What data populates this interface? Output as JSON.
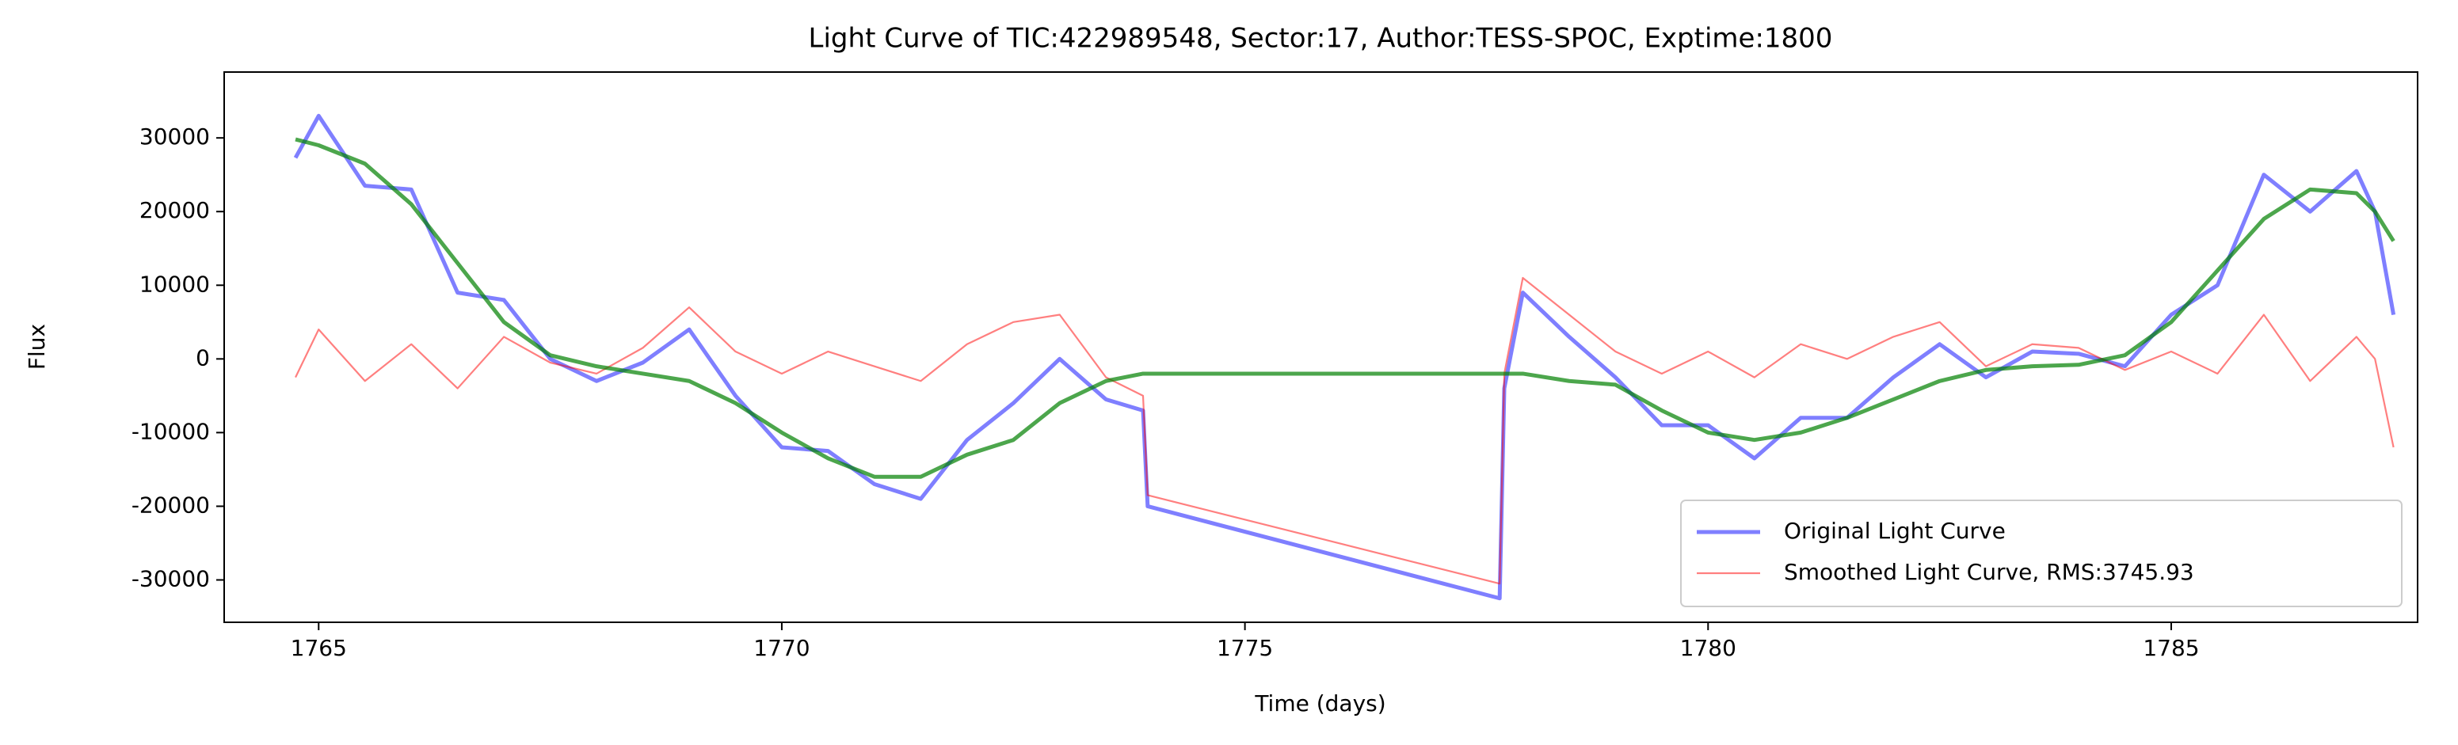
{
  "chart_data": {
    "type": "line",
    "title": "Light Curve of TIC:422989548, Sector:17, Author:TESS-SPOC, Exptime:1800",
    "x_label": "Time (days)",
    "y_label": "Flux",
    "x": [
      1764.75,
      1765.0,
      1765.5,
      1766.0,
      1766.5,
      1767.0,
      1767.5,
      1768.0,
      1768.5,
      1769.0,
      1769.5,
      1770.0,
      1770.5,
      1771.0,
      1771.5,
      1772.0,
      1772.5,
      1773.0,
      1773.5,
      1773.9,
      1773.95,
      1777.75,
      1777.8,
      1778.0,
      1778.5,
      1779.0,
      1779.5,
      1780.0,
      1780.5,
      1781.0,
      1781.5,
      1782.0,
      1782.5,
      1783.0,
      1783.5,
      1784.0,
      1784.5,
      1785.0,
      1785.5,
      1786.0,
      1786.5,
      1787.0,
      1787.2,
      1787.4
    ],
    "series": [
      {
        "name": "Original Light Curve",
        "color": "#0000ff",
        "values": [
          27300,
          33000,
          23500,
          23000,
          9000,
          8000,
          0,
          -3000,
          -500,
          4000,
          -5000,
          -12000,
          -12500,
          -17000,
          -19000,
          -11000,
          -6000,
          0,
          -5500,
          -7000,
          -20000,
          -32500,
          -4000,
          9000,
          3000,
          -2500,
          -9000,
          -9000,
          -13500,
          -8000,
          -8000,
          -2500,
          2000,
          -2500,
          1000,
          700,
          -1000,
          6000,
          10000,
          25000,
          20000,
          25500,
          20000,
          6000
        ]
      },
      {
        "name": "Smoothed Light Curve, RMS:3745.93",
        "color": "#ff0000",
        "values": [
          -2500,
          4000,
          -3000,
          2000,
          -4000,
          3000,
          -500,
          -2000,
          1500,
          7000,
          1000,
          -2000,
          1000,
          -1000,
          -3000,
          2000,
          5000,
          6000,
          -2500,
          -5000,
          -18500,
          -30500,
          -2000,
          11000,
          6000,
          1000,
          -2000,
          1000,
          -2500,
          2000,
          0,
          3000,
          5000,
          -1000,
          2000,
          1500,
          -1500,
          1000,
          -2000,
          6000,
          -3000,
          3000,
          0,
          -12000
        ]
      },
      {
        "color": "#008000",
        "values": [
          29800,
          29000,
          26500,
          21000,
          13000,
          5000,
          500,
          -1000,
          -2000,
          -3000,
          -6000,
          -10000,
          -13500,
          -16000,
          -16000,
          -13000,
          -11000,
          -6000,
          -3000,
          -2000,
          -2000,
          -2000,
          -2000,
          -2000,
          -3000,
          -3500,
          -7000,
          -10000,
          -11000,
          -10000,
          -8000,
          -5500,
          -3000,
          -1500,
          -1000,
          -800,
          500,
          5000,
          12000,
          19000,
          23000,
          22500,
          20000,
          16000
        ]
      }
    ],
    "xlim": [
      1763.98,
      1787.66
    ],
    "ylim": [
      -35750,
      38940
    ],
    "xticks": [
      1765,
      1770,
      1775,
      1780,
      1785
    ],
    "yticks": [
      -30000,
      -20000,
      -10000,
      0,
      10000,
      20000,
      30000
    ],
    "legend": "lower right"
  }
}
